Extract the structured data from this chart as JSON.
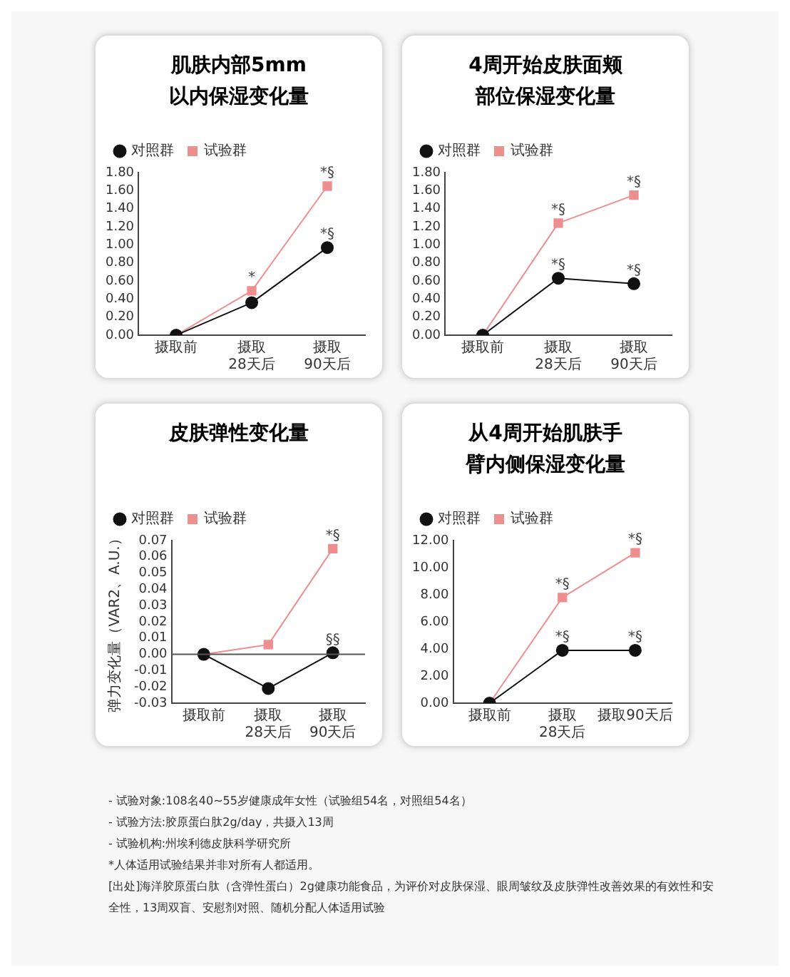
{
  "chart_data": [
    {
      "type": "line",
      "title": "肌肤内部5mm以内保湿变化量",
      "categories": [
        "摄取前",
        "摄取\n28天后",
        "摄取\n90天后"
      ],
      "series": [
        {
          "name": "对照群",
          "color": "#111111",
          "marker": "circle",
          "values": [
            0,
            0.36,
            0.97
          ]
        },
        {
          "name": "试验群",
          "color": "#ee8f8f",
          "marker": "square",
          "values": [
            0,
            0.49,
            1.65
          ]
        }
      ],
      "ylim": [
        0,
        1.8
      ],
      "yticks": [
        {
          "value": 0,
          "label": "0.00"
        },
        {
          "value": 0.2,
          "label": "0.20"
        },
        {
          "value": 0.4,
          "label": "0.40"
        },
        {
          "value": 0.6,
          "label": "0.60"
        },
        {
          "value": 0.8,
          "label": "0.80"
        },
        {
          "value": 1,
          "label": "1.00"
        },
        {
          "value": 1.2,
          "label": "1.20"
        },
        {
          "value": 1.4,
          "label": "1.40"
        },
        {
          "value": 1.6,
          "label": "1.60"
        },
        {
          "value": 1.8,
          "label": "1.80"
        }
      ],
      "legend": "top left",
      "grid": false,
      "annotations": [
        {
          "text": "*",
          "x": "摄取\n28天后",
          "y": 0.49
        },
        {
          "text": "*§",
          "x": "摄取\n90天后",
          "y": 1.65
        },
        {
          "text": "*§",
          "x": "摄取\n90天后",
          "y": 0.97
        }
      ]
    },
    {
      "type": "line",
      "title": "4周开始皮肤面颊部位保湿变化量",
      "categories": [
        "摄取前",
        "摄取\n28天后",
        "摄取\n90天后"
      ],
      "series": [
        {
          "name": "对照群",
          "color": "#111111",
          "marker": "circle",
          "values": [
            0,
            0.63,
            0.57
          ]
        },
        {
          "name": "试验群",
          "color": "#ee8f8f",
          "marker": "square",
          "values": [
            0,
            1.24,
            1.55
          ]
        }
      ],
      "ylim": [
        0,
        1.8
      ],
      "yticks": [
        {
          "value": 0,
          "label": "0.00"
        },
        {
          "value": 0.2,
          "label": "0.20"
        },
        {
          "value": 0.4,
          "label": "0.40"
        },
        {
          "value": 0.6,
          "label": "0.60"
        },
        {
          "value": 0.8,
          "label": "0.80"
        },
        {
          "value": 1,
          "label": "1.00"
        },
        {
          "value": 1.2,
          "label": "1.20"
        },
        {
          "value": 1.4,
          "label": "1.40"
        },
        {
          "value": 1.6,
          "label": "1.60"
        },
        {
          "value": 1.8,
          "label": "1.80"
        }
      ],
      "legend": "top left",
      "grid": false,
      "annotations": [
        {
          "text": "*§",
          "x": "摄取\n28天后",
          "y": 1.24
        },
        {
          "text": "*§",
          "x": "摄取\n90天后",
          "y": 1.55
        },
        {
          "text": "*§",
          "x": "摄取\n28天后",
          "y": 0.63
        },
        {
          "text": "*§",
          "x": "摄取\n90天后",
          "y": 0.57
        }
      ]
    },
    {
      "type": "line",
      "title": "皮肤弹性变化量",
      "ylabel": "弹力变化量（VAR2、A.U.）",
      "categories": [
        "摄取前",
        "摄取\n28天后",
        "摄取\n90天后"
      ],
      "series": [
        {
          "name": "对照群",
          "color": "#111111",
          "marker": "circle",
          "values": [
            0,
            -0.021,
            0.001
          ]
        },
        {
          "name": "试验群",
          "color": "#ee8f8f",
          "marker": "square",
          "values": [
            0,
            0.006,
            0.065
          ]
        }
      ],
      "ylim": [
        -0.03,
        0.07
      ],
      "yticks": [
        {
          "value": -0.03,
          "label": "-0.03"
        },
        {
          "value": -0.02,
          "label": "-0.02"
        },
        {
          "value": -0.01,
          "label": "-0.01"
        },
        {
          "value": 0,
          "label": "0.00"
        },
        {
          "value": 0.01,
          "label": "0.01"
        },
        {
          "value": 0.02,
          "label": "0.02"
        },
        {
          "value": 0.03,
          "label": "0.03"
        },
        {
          "value": 0.04,
          "label": "0.04"
        },
        {
          "value": 0.05,
          "label": "0.05"
        },
        {
          "value": 0.06,
          "label": "0.06"
        },
        {
          "value": 0.07,
          "label": "0.07"
        }
      ],
      "ref_lines": [
        {
          "axis": "y",
          "value": 0,
          "color": "#555555"
        }
      ],
      "legend": "top left",
      "grid": false,
      "annotations": [
        {
          "text": "*§",
          "x": "摄取\n90天后",
          "y": 0.065
        },
        {
          "text": "§§",
          "x": "摄取\n90天后",
          "y": 0.001
        }
      ]
    },
    {
      "type": "line",
      "title": "从4周开始肌肤手臂内侧保湿变化量",
      "categories": [
        "摄取前",
        "摄取\n28天后",
        "摄取90天后"
      ],
      "series": [
        {
          "name": "对照群",
          "color": "#111111",
          "marker": "circle",
          "values": [
            0,
            3.9,
            3.9
          ]
        },
        {
          "name": "试验群",
          "color": "#ee8f8f",
          "marker": "square",
          "values": [
            0,
            7.8,
            11.1
          ]
        }
      ],
      "ylim": [
        0,
        12
      ],
      "yticks": [
        {
          "value": 0,
          "label": "0.00"
        },
        {
          "value": 2,
          "label": "2.00"
        },
        {
          "value": 4,
          "label": "4.00"
        },
        {
          "value": 6,
          "label": "6.00"
        },
        {
          "value": 8,
          "label": "8.00"
        },
        {
          "value": 10,
          "label": "10.00"
        },
        {
          "value": 12,
          "label": "12.00"
        }
      ],
      "legend": "top left",
      "grid": false,
      "annotations": [
        {
          "text": "*§",
          "x": "摄取\n28天后",
          "y": 7.8
        },
        {
          "text": "*§",
          "x": "摄取90天后",
          "y": 11.1
        },
        {
          "text": "*§",
          "x": "摄取\n28天后",
          "y": 3.9
        },
        {
          "text": "*§",
          "x": "摄取90天后",
          "y": 3.9
        },
        "- 试验对象:108名40~55岁健康成年女性（试验组54名，对照组54名）",
        "- 试验方法:胶原蛋白肽2g/day，共摄入13周",
        "- 试验机构:州埃利德皮肤科学研究所",
        "*人体适用试验结果并非对所有人都适用。",
        "[出处]海洋胶原蛋白肽（含弹性蛋白）2g健康功能食品，为评价对皮肤保湿、眼周皱纹及皮肤弹性改善效果的有效性和安全性，13周双盲、安慰剂对照、随机分配人体适用试验"
      ]
    }
  ]
}
